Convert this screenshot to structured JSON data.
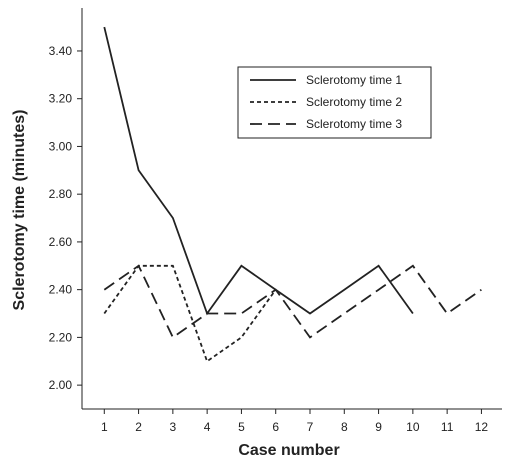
{
  "chart_data": {
    "type": "line",
    "xlabel": "Case number",
    "ylabel": "Sclerotomy time (minutes)",
    "x": [
      1,
      2,
      3,
      4,
      5,
      6,
      7,
      8,
      9,
      10,
      11,
      12
    ],
    "xticks": [
      "1",
      "2",
      "3",
      "4",
      "5",
      "6",
      "7",
      "8",
      "9",
      "10",
      "11",
      "12"
    ],
    "yticks": [
      "2.00",
      "2.20",
      "2.40",
      "2.60",
      "2.80",
      "3.00",
      "3.20",
      "3.40"
    ],
    "ytick_values": [
      2.0,
      2.2,
      2.4,
      2.6,
      2.8,
      3.0,
      3.2,
      3.4
    ],
    "xlim": [
      0.35,
      12.6
    ],
    "ylim": [
      1.9,
      3.58
    ],
    "grid": false,
    "legend_position": "top-right",
    "series": [
      {
        "name": "Sclerotomy time 1",
        "dash": "solid",
        "x": [
          1,
          2,
          3,
          4,
          5,
          6,
          7,
          8,
          9,
          10
        ],
        "values": [
          3.5,
          2.9,
          2.7,
          2.3,
          2.5,
          2.4,
          2.3,
          2.4,
          2.5,
          2.3
        ]
      },
      {
        "name": "Sclerotomy time 2",
        "dash": "short",
        "x": [
          1,
          2,
          3,
          4,
          5,
          6
        ],
        "values": [
          2.3,
          2.5,
          2.5,
          2.1,
          2.2,
          2.4
        ]
      },
      {
        "name": "Sclerotomy time 3",
        "dash": "long",
        "x": [
          1,
          2,
          3,
          4,
          5,
          6,
          7,
          8,
          9,
          10,
          11,
          12
        ],
        "values": [
          2.4,
          2.5,
          2.2,
          2.3,
          2.3,
          2.4,
          2.2,
          2.3,
          2.4,
          2.5,
          2.3,
          2.4
        ]
      }
    ]
  }
}
